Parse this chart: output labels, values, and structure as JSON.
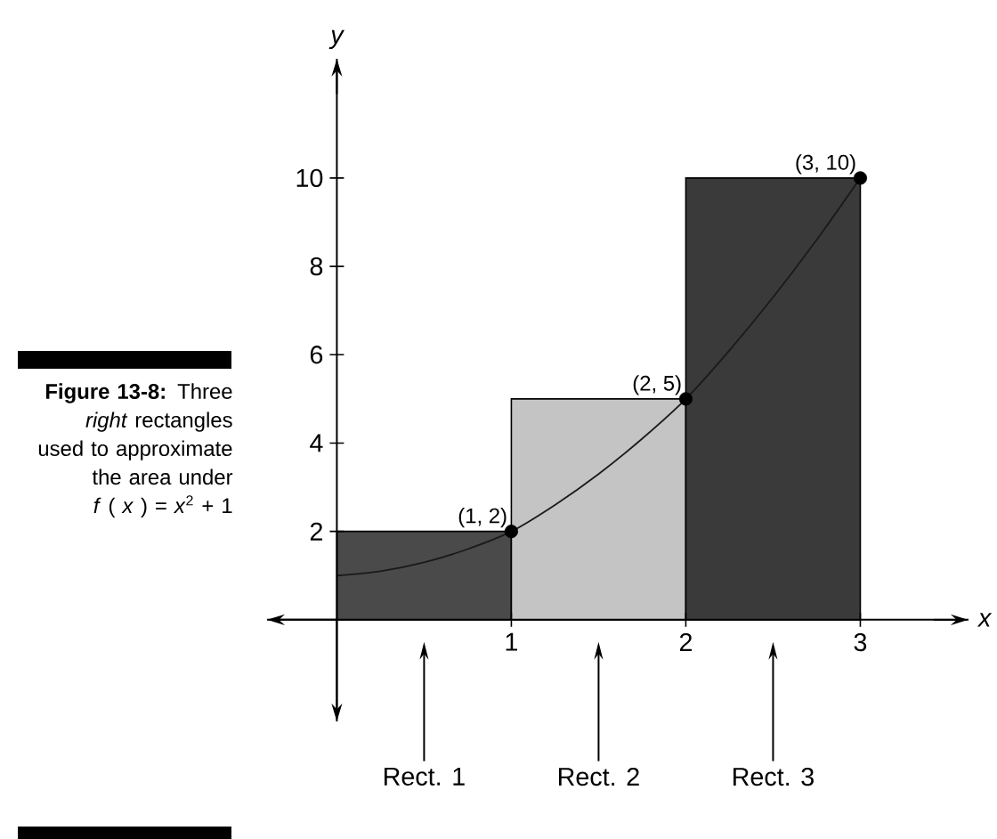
{
  "chart_data": {
    "type": "histogram",
    "xlabel": "x",
    "ylabel": "y",
    "bins": [
      0,
      1,
      2,
      3
    ],
    "values": [
      2,
      5,
      10
    ],
    "colors": [
      "#4a4a4a",
      "#c4c4c4",
      "#3a3a3a"
    ],
    "series": [
      {
        "type": "line",
        "color": "#1a1a1a",
        "x": [
          0,
          0.25,
          0.5,
          0.75,
          1,
          1.25,
          1.5,
          1.75,
          2,
          2.25,
          2.5,
          2.75,
          3
        ],
        "values": [
          1,
          1.1,
          1.3,
          1.6,
          2,
          2.6,
          3.3,
          4.1,
          5,
          6.1,
          7.3,
          8.6,
          10
        ]
      },
      {
        "type": "scatter",
        "color": "#000000",
        "x": [
          1,
          2,
          3
        ],
        "values": [
          2,
          5,
          10
        ],
        "value_labels": [
          "(1, 2)",
          "(2, 5)",
          "(3, 10)"
        ]
      }
    ],
    "xlim": [
      -0.4,
      3.62
    ],
    "ylim": [
      -2.3,
      12.7
    ],
    "xticks": [
      1,
      2,
      3
    ],
    "yticks": [
      2,
      4,
      6,
      8,
      10
    ],
    "annotations": [
      "Rect. 1",
      "Rect. 2",
      "Rect. 3",
      "**Figure 13-8:** Three *right* rectangles used to approximate the area under *f* ( *x* ) = *x*$^{2}$ + 1"
    ]
  }
}
